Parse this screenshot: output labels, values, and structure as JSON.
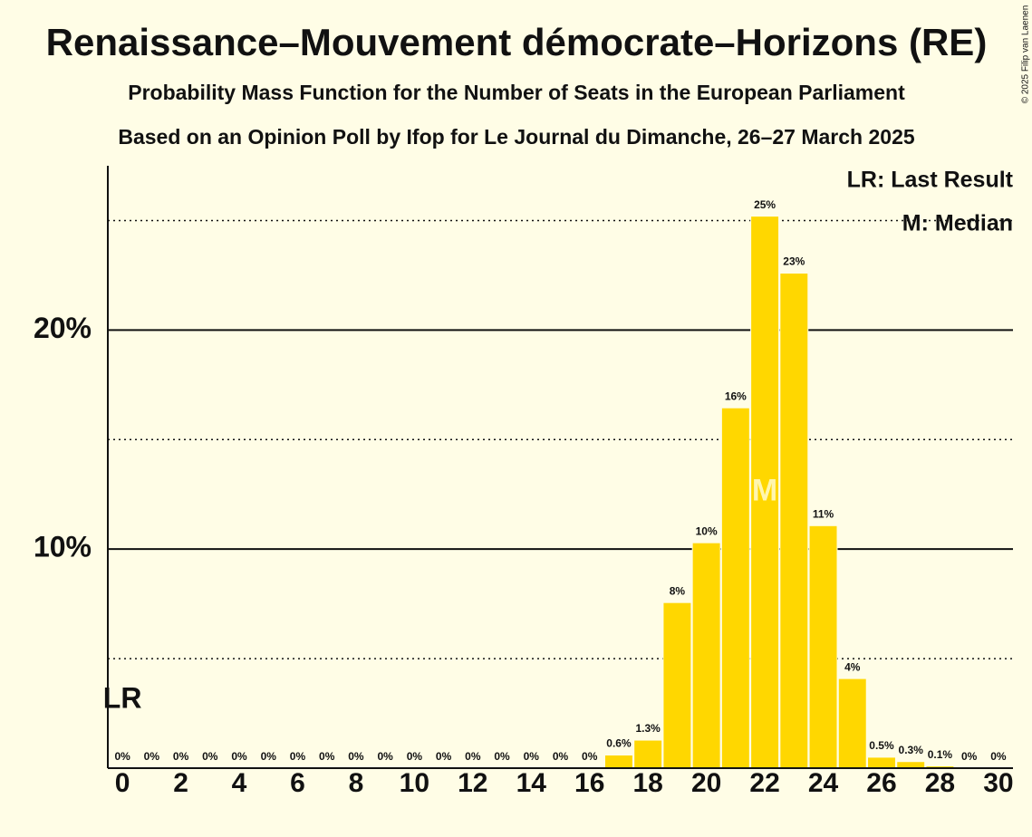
{
  "chart_data": {
    "type": "bar",
    "title": "Renaissance–Mouvement démocrate–Horizons (RE)",
    "subtitle": "Probability Mass Function for the Number of Seats in the European Parliament",
    "subtitle2": "Based on an Opinion Poll by Ifop for Le Journal du Dimanche, 26–27 March 2025",
    "copyright": "© 2025 Filip van Laenen",
    "x": [
      0,
      1,
      2,
      3,
      4,
      5,
      6,
      7,
      8,
      9,
      10,
      11,
      12,
      13,
      14,
      15,
      16,
      17,
      18,
      19,
      20,
      21,
      22,
      23,
      24,
      25,
      26,
      27,
      28,
      29,
      30
    ],
    "values": [
      0,
      0,
      0,
      0,
      0,
      0,
      0,
      0,
      0,
      0,
      0,
      0,
      0,
      0,
      0,
      0,
      0,
      0.6,
      1.28,
      7.56,
      10.29,
      16.45,
      25.2,
      22.6,
      11.07,
      4.09,
      0.5,
      0.3,
      0.1,
      0,
      0
    ],
    "value_labels": [
      "0%",
      "0%",
      "0%",
      "0%",
      "0%",
      "0%",
      "0%",
      "0%",
      "0%",
      "0%",
      "0%",
      "0%",
      "0%",
      "0%",
      "0%",
      "0%",
      "0%",
      "0.6%",
      "1.3%",
      "8%",
      "10%",
      "16%",
      "25%",
      "23%",
      "11%",
      "4%",
      "0.5%",
      "0.3%",
      "0.1%",
      "0%",
      "0%"
    ],
    "color": "#ffd700",
    "xlim": [
      -0.5,
      30.5
    ],
    "xticks": [
      0,
      2,
      4,
      6,
      8,
      10,
      12,
      14,
      16,
      18,
      20,
      22,
      24,
      26,
      28,
      30
    ],
    "ylim": [
      0,
      27.5
    ],
    "yticks": [
      {
        "value": 10,
        "label": "10%"
      },
      {
        "value": 20,
        "label": "20%"
      }
    ],
    "minor_grid": [
      5,
      15,
      25
    ],
    "last_result": 0,
    "last_result_label": "LR",
    "median": 22,
    "median_label": "M",
    "legend": [
      "LR: Last Result",
      "M: Median"
    ]
  }
}
